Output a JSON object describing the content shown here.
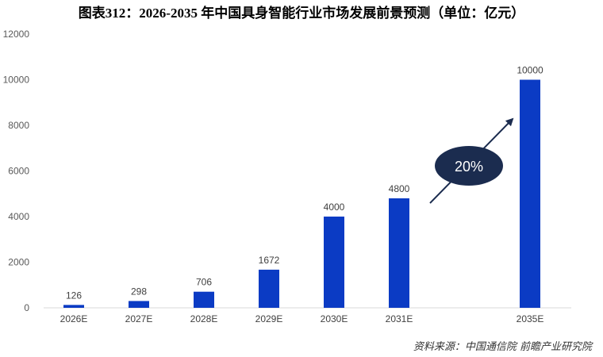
{
  "title": "图表312：2026-2035 年中国具身智能行业市场发展前景预测（单位：亿元）",
  "source": "资料来源：中国通信院  前瞻产业研究院",
  "colors": {
    "bar": "#0B3BC4",
    "growth_ellipse": "#1B2C4F",
    "arrow": "#1B2C4F"
  },
  "chart_data": {
    "type": "bar",
    "categories": [
      "2026E",
      "2027E",
      "2028E",
      "2029E",
      "2030E",
      "2031E",
      "2035E"
    ],
    "values": [
      126,
      298,
      706,
      1672,
      4000,
      4800,
      10000
    ],
    "ylim": [
      0,
      12000
    ],
    "yticks": [
      0,
      2000,
      4000,
      6000,
      8000,
      10000,
      12000
    ],
    "grid": false,
    "annotations": [
      {
        "text": "20%"
      }
    ]
  }
}
